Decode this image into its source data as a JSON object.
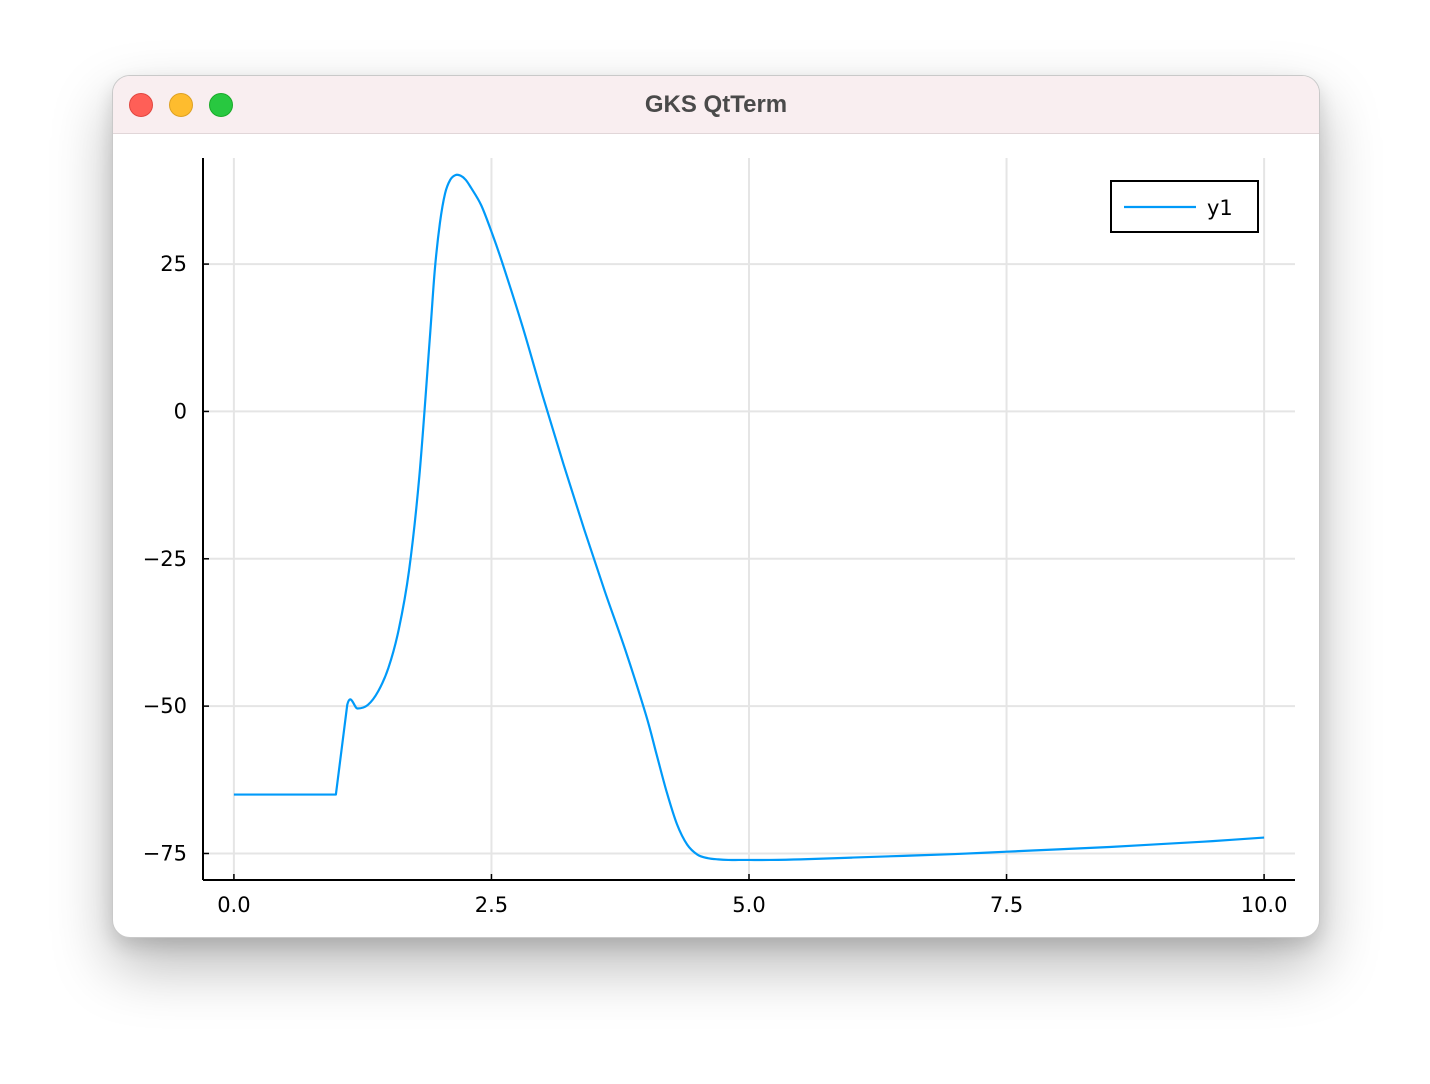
{
  "window": {
    "title": "GKS QtTerm"
  },
  "colors": {
    "series": "#009af9",
    "grid": "#e5e5e5",
    "axis": "#000000",
    "titlebar": "#f9eef0"
  },
  "icons": {
    "close": "close-circle-icon",
    "minimize": "minimize-circle-icon",
    "zoom": "zoom-circle-icon"
  },
  "chart_data": {
    "type": "line",
    "title": "",
    "xlabel": "",
    "ylabel": "",
    "xlim": [
      -0.3,
      10.3
    ],
    "ylim": [
      -79.5,
      43
    ],
    "xticks": [
      0.0,
      2.5,
      5.0,
      7.5,
      10.0
    ],
    "xtick_labels": [
      "0.0",
      "2.5",
      "5.0",
      "7.5",
      "10.0"
    ],
    "yticks": [
      -75,
      -50,
      -25,
      0,
      25
    ],
    "ytick_labels": [
      "−75",
      "−50",
      "−25",
      "0",
      "25"
    ],
    "grid": true,
    "legend_position": "top-right",
    "series": [
      {
        "name": "y1",
        "x": [
          0.0,
          0.5,
          0.99,
          1.1,
          1.2,
          1.3,
          1.4,
          1.5,
          1.6,
          1.7,
          1.8,
          1.9,
          1.95,
          2.0,
          2.05,
          2.1,
          2.15,
          2.2,
          2.25,
          2.3,
          2.4,
          2.5,
          2.6,
          2.8,
          3.0,
          3.2,
          3.4,
          3.6,
          3.8,
          4.0,
          4.1,
          4.2,
          4.3,
          4.4,
          4.5,
          4.6,
          4.7,
          4.8,
          4.9,
          5.0,
          5.2,
          5.5,
          6.0,
          6.5,
          7.0,
          7.5,
          8.0,
          8.5,
          9.0,
          9.5,
          10.0
        ],
        "y": [
          -65,
          -65,
          -65,
          -49.8,
          -50.4,
          -49.8,
          -47.5,
          -43.5,
          -37,
          -27,
          -11,
          12,
          24,
          32,
          37,
          39.3,
          40.1,
          40,
          39.3,
          38,
          35,
          30.5,
          25.5,
          14.5,
          2.5,
          -9,
          -20,
          -30.5,
          -40.5,
          -51.5,
          -58,
          -64.5,
          -70,
          -73.5,
          -75.2,
          -75.8,
          -76,
          -76.1,
          -76.1,
          -76.1,
          -76.1,
          -76,
          -75.7,
          -75.4,
          -75.1,
          -74.7,
          -74.3,
          -73.9,
          -73.4,
          -72.9,
          -72.3
        ]
      }
    ]
  }
}
